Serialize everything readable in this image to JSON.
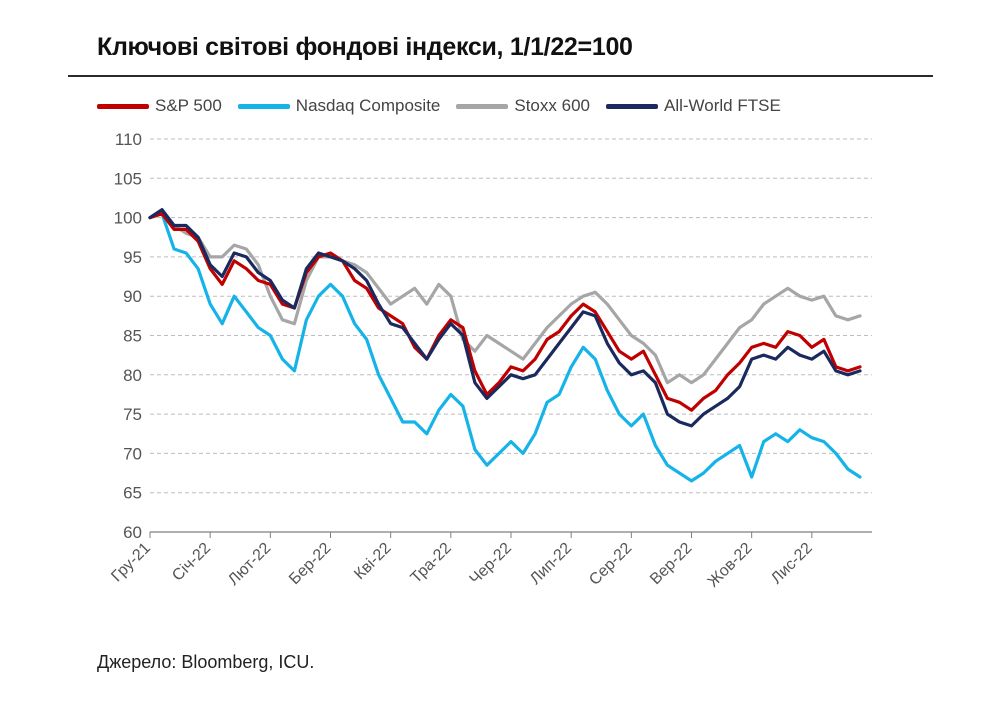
{
  "title": "Ключові світові фондові індекси, 1/1/22=100",
  "source": "Джерело: Bloomberg, ICU.",
  "chart_data": {
    "type": "line",
    "title": "Ключові світові фондові індекси, 1/1/22=100",
    "xlabel": "",
    "ylabel": "",
    "ylim": [
      60,
      110
    ],
    "yticks": [
      60,
      65,
      70,
      75,
      80,
      85,
      90,
      95,
      100,
      105,
      110
    ],
    "grid": "horizontal dashed",
    "legend_position": "top",
    "x_tick_labels": [
      "Гру-21",
      "Січ-22",
      "Лют-22",
      "Бер-22",
      "Кві-22",
      "Тра-22",
      "Чер-22",
      "Лип-22",
      "Сер-22",
      "Вер-22",
      "Жов-22",
      "Лис-22"
    ],
    "x_range": [
      0,
      12
    ],
    "series": [
      {
        "name": "S&P 500",
        "color": "#c00000",
        "x": [
          0,
          0.2,
          0.4,
          0.6,
          0.8,
          1.0,
          1.2,
          1.4,
          1.6,
          1.8,
          2.0,
          2.2,
          2.4,
          2.6,
          2.8,
          3.0,
          3.2,
          3.4,
          3.6,
          3.8,
          4.0,
          4.2,
          4.4,
          4.6,
          4.8,
          5.0,
          5.2,
          5.4,
          5.6,
          5.8,
          6.0,
          6.2,
          6.4,
          6.6,
          6.8,
          7.0,
          7.2,
          7.4,
          7.6,
          7.8,
          8.0,
          8.2,
          8.4,
          8.6,
          8.8,
          9.0,
          9.2,
          9.4,
          9.6,
          9.8,
          10.0,
          10.2,
          10.4,
          10.6,
          10.8,
          11.0,
          11.2,
          11.4,
          11.6,
          11.8
        ],
        "values": [
          100,
          100.5,
          98.5,
          98.5,
          97,
          93.5,
          91.5,
          94.5,
          93.5,
          92,
          91.5,
          89,
          88.5,
          93,
          95,
          95.5,
          94.5,
          92,
          91,
          88.5,
          87.5,
          86.5,
          83.5,
          82,
          85,
          87,
          86,
          80.5,
          77.5,
          79,
          81,
          80.5,
          82,
          84.5,
          85.5,
          87.5,
          89,
          88,
          85.5,
          83,
          82,
          83,
          80,
          77,
          76.5,
          75.5,
          77,
          78,
          80,
          81.5,
          83.5,
          84,
          83.5,
          85.5,
          85,
          83.5,
          84.5,
          81,
          80.5,
          81
        ]
      },
      {
        "name": "Nasdaq Composite",
        "color": "#16b3e8",
        "x": [
          0,
          0.2,
          0.4,
          0.6,
          0.8,
          1.0,
          1.2,
          1.4,
          1.6,
          1.8,
          2.0,
          2.2,
          2.4,
          2.6,
          2.8,
          3.0,
          3.2,
          3.4,
          3.6,
          3.8,
          4.0,
          4.2,
          4.4,
          4.6,
          4.8,
          5.0,
          5.2,
          5.4,
          5.6,
          5.8,
          6.0,
          6.2,
          6.4,
          6.6,
          6.8,
          7.0,
          7.2,
          7.4,
          7.6,
          7.8,
          8.0,
          8.2,
          8.4,
          8.6,
          8.8,
          9.0,
          9.2,
          9.4,
          9.6,
          9.8,
          10.0,
          10.2,
          10.4,
          10.6,
          10.8,
          11.0,
          11.2,
          11.4,
          11.6,
          11.8
        ],
        "values": [
          100,
          100.5,
          96,
          95.5,
          93.5,
          89,
          86.5,
          90,
          88,
          86,
          85,
          82,
          80.5,
          87,
          90,
          91.5,
          90,
          86.5,
          84.5,
          80,
          77,
          74,
          74,
          72.5,
          75.5,
          77.5,
          76,
          70.5,
          68.5,
          70,
          71.5,
          70,
          72.5,
          76.5,
          77.5,
          81,
          83.5,
          82,
          78,
          75,
          73.5,
          75,
          71,
          68.5,
          67.5,
          66.5,
          67.5,
          69,
          70,
          71,
          67,
          71.5,
          72.5,
          71.5,
          73,
          72,
          71.5,
          70,
          68,
          67
        ]
      },
      {
        "name": "Stoxx 600",
        "color": "#a6a6a6",
        "x": [
          0,
          0.2,
          0.4,
          0.6,
          0.8,
          1.0,
          1.2,
          1.4,
          1.6,
          1.8,
          2.0,
          2.2,
          2.4,
          2.6,
          2.8,
          3.0,
          3.2,
          3.4,
          3.6,
          3.8,
          4.0,
          4.2,
          4.4,
          4.6,
          4.8,
          5.0,
          5.2,
          5.4,
          5.6,
          5.8,
          6.0,
          6.2,
          6.4,
          6.6,
          6.8,
          7.0,
          7.2,
          7.4,
          7.6,
          7.8,
          8.0,
          8.2,
          8.4,
          8.6,
          8.8,
          9.0,
          9.2,
          9.4,
          9.6,
          9.8,
          10.0,
          10.2,
          10.4,
          10.6,
          10.8,
          11.0,
          11.2,
          11.4,
          11.6,
          11.8
        ],
        "values": [
          100,
          101,
          99,
          98,
          97.5,
          95,
          95,
          96.5,
          96,
          94,
          90,
          87,
          86.5,
          92,
          95,
          95,
          94.5,
          94,
          93,
          91,
          89,
          90,
          91,
          89,
          91.5,
          90,
          84.5,
          83,
          85,
          84,
          83,
          82,
          84,
          86,
          87.5,
          89,
          90,
          90.5,
          89,
          87,
          85,
          84,
          82.5,
          79,
          80,
          79,
          80,
          82,
          84,
          86,
          87,
          89,
          90,
          91,
          90,
          89.5,
          90,
          87.5,
          87,
          87.5
        ]
      },
      {
        "name": "All-World FTSE",
        "color": "#1b2a5e",
        "x": [
          0,
          0.2,
          0.4,
          0.6,
          0.8,
          1.0,
          1.2,
          1.4,
          1.6,
          1.8,
          2.0,
          2.2,
          2.4,
          2.6,
          2.8,
          3.0,
          3.2,
          3.4,
          3.6,
          3.8,
          4.0,
          4.2,
          4.4,
          4.6,
          4.8,
          5.0,
          5.2,
          5.4,
          5.6,
          5.8,
          6.0,
          6.2,
          6.4,
          6.6,
          6.8,
          7.0,
          7.2,
          7.4,
          7.6,
          7.8,
          8.0,
          8.2,
          8.4,
          8.6,
          8.8,
          9.0,
          9.2,
          9.4,
          9.6,
          9.8,
          10.0,
          10.2,
          10.4,
          10.6,
          10.8,
          11.0,
          11.2,
          11.4,
          11.6,
          11.8
        ],
        "values": [
          100,
          101,
          99,
          99,
          97.5,
          94,
          92.5,
          95.5,
          95,
          93,
          92,
          89.5,
          88.5,
          93.5,
          95.5,
          95,
          94.5,
          93.5,
          92,
          89,
          86.5,
          86,
          84,
          82,
          84.5,
          86.5,
          85,
          79,
          77,
          78.5,
          80,
          79.5,
          80,
          82,
          84,
          86,
          88,
          87.5,
          84,
          81.5,
          80,
          80.5,
          79,
          75,
          74,
          73.5,
          75,
          76,
          77,
          78.5,
          82,
          82.5,
          82,
          83.5,
          82.5,
          82,
          83,
          80.5,
          80,
          80.5
        ]
      }
    ]
  }
}
